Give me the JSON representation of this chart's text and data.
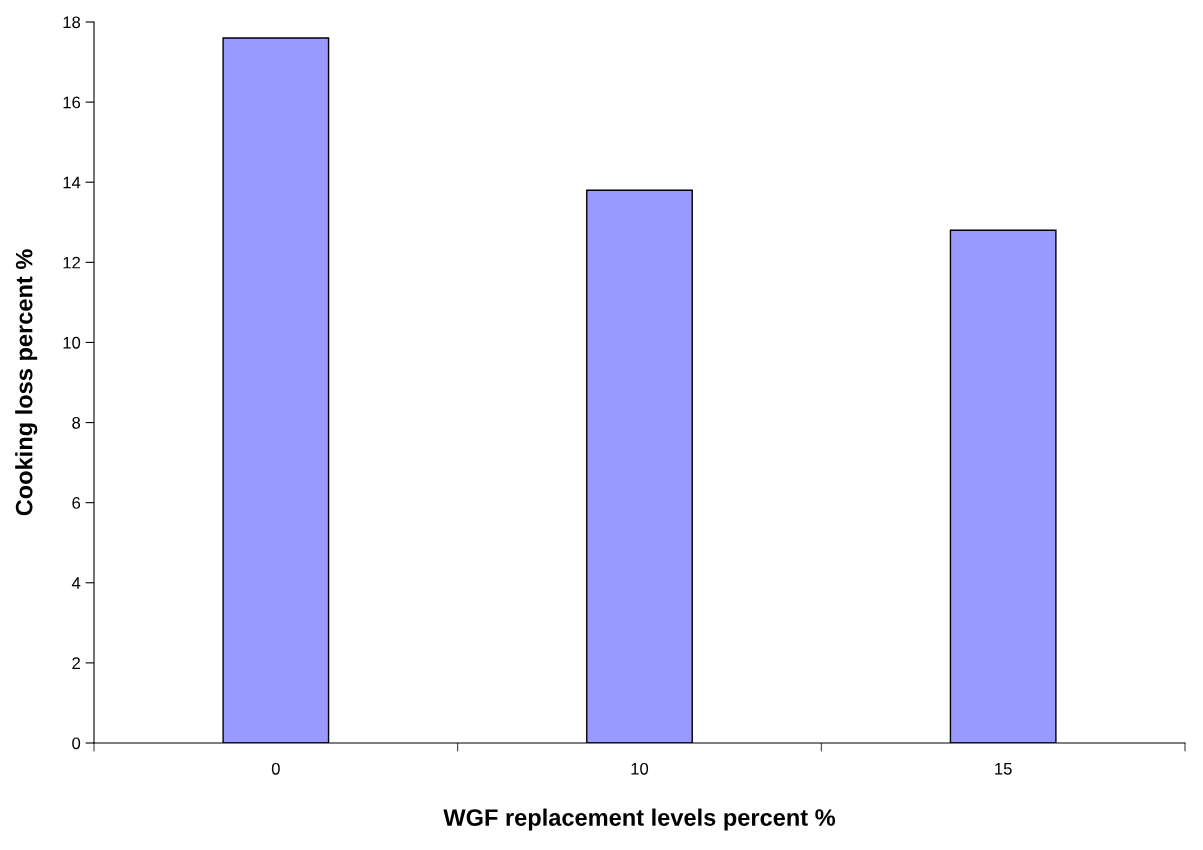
{
  "chart_data": {
    "type": "bar",
    "xlabel": "WGF replacement levels percent %",
    "ylabel": "Cooking loss percent %",
    "categories": [
      "0",
      "10",
      "15"
    ],
    "values": [
      17.6,
      13.8,
      12.8
    ],
    "color": "#9999ff",
    "ylim": [
      0,
      18
    ],
    "yticks": [
      0,
      2,
      4,
      6,
      8,
      10,
      12,
      14,
      16,
      18
    ],
    "grid": false
  }
}
